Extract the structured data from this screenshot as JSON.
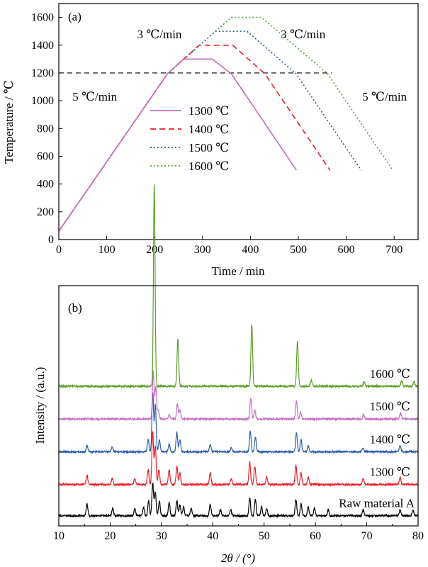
{
  "chart_data": [
    {
      "type": "line",
      "panel_label": "(a)",
      "xlabel": "Time / min",
      "ylabel": "Temperature / ℃",
      "xlim": [
        0,
        750
      ],
      "ylim": [
        0,
        1700
      ],
      "xticks": [
        0,
        100,
        200,
        300,
        400,
        500,
        600,
        700
      ],
      "yticks": [
        0,
        200,
        400,
        600,
        800,
        1000,
        1200,
        1400,
        1600
      ],
      "reference_line": {
        "y": 1200,
        "x_range": [
          0,
          570
        ],
        "style": "dashed",
        "color": "#000000"
      },
      "annotations": [
        {
          "text": "5 ℃/min",
          "x": 75,
          "y": 1000
        },
        {
          "text": "3 ℃/min",
          "x": 210,
          "y": 1450
        },
        {
          "text": "3 ℃/min",
          "x": 510,
          "y": 1450
        },
        {
          "text": "5 ℃/min",
          "x": 680,
          "y": 1000
        }
      ],
      "legend": "center",
      "series": [
        {
          "name": "1300 ℃",
          "color": "#c86bbf",
          "dash": "solid",
          "x": [
            0,
            227,
            260,
            320,
            360,
            496
          ],
          "y": [
            60,
            1195,
            1300,
            1300,
            1195,
            500
          ]
        },
        {
          "name": "1400 ℃",
          "color": "#e8202a",
          "dash": "dashed",
          "x": [
            0,
            227,
            293,
            363,
            430,
            566
          ],
          "y": [
            60,
            1195,
            1400,
            1400,
            1195,
            500
          ]
        },
        {
          "name": "1500 ℃",
          "color": "#2a5caa",
          "dash": "dotted",
          "x": [
            0,
            227,
            327,
            393,
            495,
            631
          ],
          "y": [
            60,
            1195,
            1500,
            1500,
            1195,
            500
          ]
        },
        {
          "name": "1600 ℃",
          "color": "#5a9e2c",
          "dash": "dotted",
          "x": [
            0,
            227,
            360,
            423,
            561,
            697
          ],
          "y": [
            60,
            1195,
            1600,
            1600,
            1195,
            500
          ]
        }
      ]
    },
    {
      "type": "line",
      "panel_label": "(b)",
      "xlabel": "2θ / (°)",
      "ylabel": "Intensity / (a.u.)",
      "xlim": [
        10,
        80
      ],
      "xticks": [
        10,
        20,
        30,
        40,
        50,
        60,
        70,
        80
      ],
      "series": [
        {
          "name": "Raw material A",
          "color": "#000000",
          "baseline": 0.13,
          "peaks": [
            [
              15.5,
              0.08
            ],
            [
              20.5,
              0.05
            ],
            [
              24.8,
              0.05
            ],
            [
              26.5,
              0.06
            ],
            [
              27.5,
              0.1
            ],
            [
              28.3,
              0.22
            ],
            [
              28.8,
              0.16
            ],
            [
              29.6,
              0.1
            ],
            [
              31.5,
              0.09
            ],
            [
              33.0,
              0.1
            ],
            [
              33.6,
              0.07
            ],
            [
              34.3,
              0.06
            ],
            [
              35.8,
              0.05
            ],
            [
              39.5,
              0.08
            ],
            [
              41.5,
              0.04
            ],
            [
              43.5,
              0.04
            ],
            [
              47.2,
              0.12
            ],
            [
              48.3,
              0.11
            ],
            [
              49.5,
              0.06
            ],
            [
              50.5,
              0.05
            ],
            [
              56.2,
              0.11
            ],
            [
              57.2,
              0.08
            ],
            [
              58.6,
              0.06
            ],
            [
              59.8,
              0.05
            ],
            [
              62.5,
              0.04
            ],
            [
              69.3,
              0.04
            ],
            [
              76.5,
              0.04
            ],
            [
              79.0,
              0.04
            ]
          ]
        },
        {
          "name": "1300 ℃",
          "color": "#e8202a",
          "baseline": 0.34,
          "peaks": [
            [
              15.5,
              0.06
            ],
            [
              20.4,
              0.04
            ],
            [
              24.8,
              0.04
            ],
            [
              27.4,
              0.1
            ],
            [
              28.3,
              0.36
            ],
            [
              28.8,
              0.26
            ],
            [
              29.5,
              0.1
            ],
            [
              31.5,
              0.1
            ],
            [
              33.0,
              0.12
            ],
            [
              33.6,
              0.08
            ],
            [
              39.5,
              0.08
            ],
            [
              43.6,
              0.04
            ],
            [
              47.2,
              0.15
            ],
            [
              48.2,
              0.12
            ],
            [
              50.5,
              0.05
            ],
            [
              56.2,
              0.13
            ],
            [
              57.2,
              0.08
            ],
            [
              58.6,
              0.05
            ],
            [
              69.3,
              0.04
            ],
            [
              76.5,
              0.05
            ]
          ]
        },
        {
          "name": "1400 ℃",
          "color": "#2a5caa",
          "baseline": 0.56,
          "peaks": [
            [
              15.5,
              0.04
            ],
            [
              20.4,
              0.03
            ],
            [
              27.4,
              0.08
            ],
            [
              28.3,
              0.4
            ],
            [
              28.8,
              0.32
            ],
            [
              29.6,
              0.08
            ],
            [
              31.5,
              0.05
            ],
            [
              33.0,
              0.13
            ],
            [
              33.6,
              0.08
            ],
            [
              39.5,
              0.05
            ],
            [
              43.6,
              0.03
            ],
            [
              47.3,
              0.14
            ],
            [
              48.3,
              0.1
            ],
            [
              56.3,
              0.13
            ],
            [
              57.2,
              0.08
            ],
            [
              58.6,
              0.04
            ],
            [
              69.3,
              0.03
            ],
            [
              76.5,
              0.04
            ]
          ]
        },
        {
          "name": "1500 ℃",
          "color": "#c86bbf",
          "baseline": 0.78,
          "peaks": [
            [
              28.4,
              0.32
            ],
            [
              28.9,
              0.22
            ],
            [
              29.4,
              0.06
            ],
            [
              31.5,
              0.03
            ],
            [
              33.1,
              0.1
            ],
            [
              33.6,
              0.06
            ],
            [
              47.4,
              0.14
            ],
            [
              48.2,
              0.06
            ],
            [
              56.3,
              0.12
            ],
            [
              57.1,
              0.05
            ],
            [
              69.4,
              0.03
            ],
            [
              76.6,
              0.04
            ]
          ]
        },
        {
          "name": "1600 ℃",
          "color": "#5a9e2c",
          "baseline": 1.0,
          "peaks": [
            [
              28.6,
              1.35
            ],
            [
              33.2,
              0.32
            ],
            [
              47.6,
              0.42
            ],
            [
              56.5,
              0.3
            ],
            [
              59.2,
              0.04
            ],
            [
              69.5,
              0.03
            ],
            [
              76.8,
              0.04
            ],
            [
              79.2,
              0.03
            ]
          ]
        }
      ]
    }
  ]
}
